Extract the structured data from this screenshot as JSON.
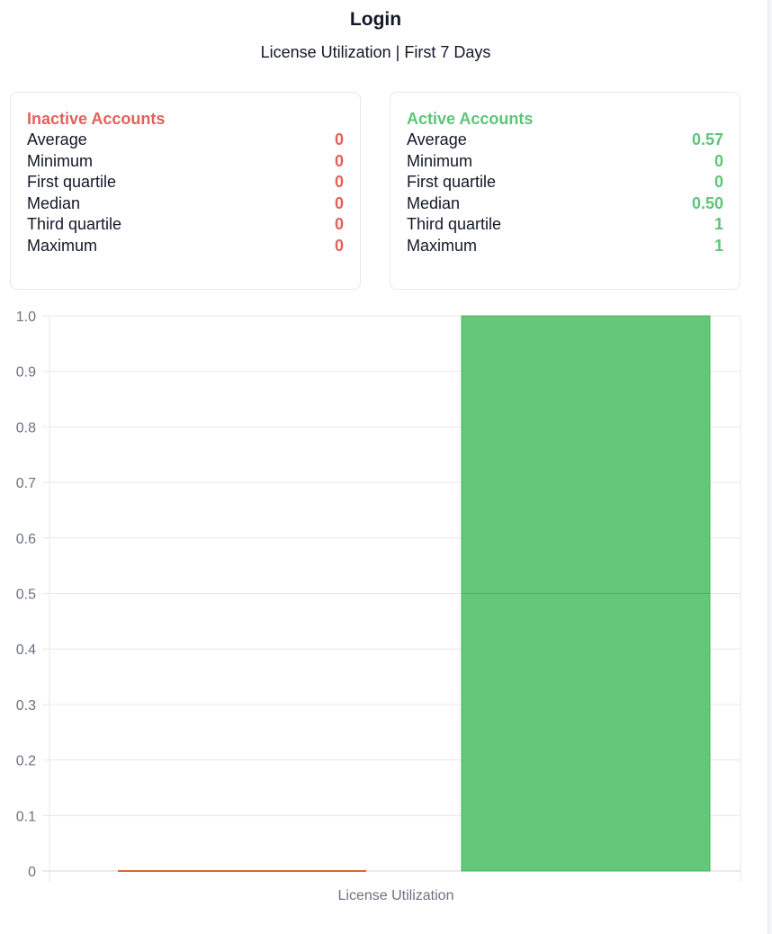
{
  "header": {
    "title": "Login",
    "subtitle": "License Utilization | First 7 Days"
  },
  "cards": {
    "inactive": {
      "title": "Inactive Accounts",
      "rows": [
        {
          "label": "Average",
          "value": "0"
        },
        {
          "label": "Minimum",
          "value": "0"
        },
        {
          "label": "First quartile",
          "value": "0"
        },
        {
          "label": "Median",
          "value": "0"
        },
        {
          "label": "Third quartile",
          "value": "0"
        },
        {
          "label": "Maximum",
          "value": "0"
        }
      ]
    },
    "active": {
      "title": "Active Accounts",
      "rows": [
        {
          "label": "Average",
          "value": "0.57"
        },
        {
          "label": "Minimum",
          "value": "0"
        },
        {
          "label": "First quartile",
          "value": "0"
        },
        {
          "label": "Median",
          "value": "0.50"
        },
        {
          "label": "Third quartile",
          "value": "1"
        },
        {
          "label": "Maximum",
          "value": "1"
        }
      ]
    }
  },
  "colors": {
    "inactive": "#e0625b",
    "active": "#5ec479",
    "active_fill": "#64c87b",
    "active_stroke": "#4cb062",
    "inactive_box": "#d9663a",
    "grid": "#e5e7eb",
    "tick_text": "#6b7280"
  },
  "chart_data": {
    "type": "boxplot",
    "xlabel": "License Utilization",
    "ylabel": "",
    "ylim": [
      0,
      1
    ],
    "yticks": [
      {
        "value": 0,
        "label": "0"
      },
      {
        "value": 0.1,
        "label": "0.1"
      },
      {
        "value": 0.2,
        "label": "0.2"
      },
      {
        "value": 0.3,
        "label": "0.3"
      },
      {
        "value": 0.4,
        "label": "0.4"
      },
      {
        "value": 0.5,
        "label": "0.5"
      },
      {
        "value": 0.6,
        "label": "0.6"
      },
      {
        "value": 0.7,
        "label": "0.7"
      },
      {
        "value": 0.8,
        "label": "0.8"
      },
      {
        "value": 0.9,
        "label": "0.9"
      },
      {
        "value": 1,
        "label": "1.0"
      }
    ],
    "grid": true,
    "series": [
      {
        "key": "inactive",
        "name": "Inactive Accounts",
        "mean": 0,
        "min": 0,
        "q1": 0,
        "median": 0,
        "q3": 0,
        "max": 0
      },
      {
        "key": "active",
        "name": "Active Accounts",
        "mean": 0.57,
        "min": 0,
        "q1": 0,
        "median": 0.5,
        "q3": 1,
        "max": 1
      }
    ]
  }
}
